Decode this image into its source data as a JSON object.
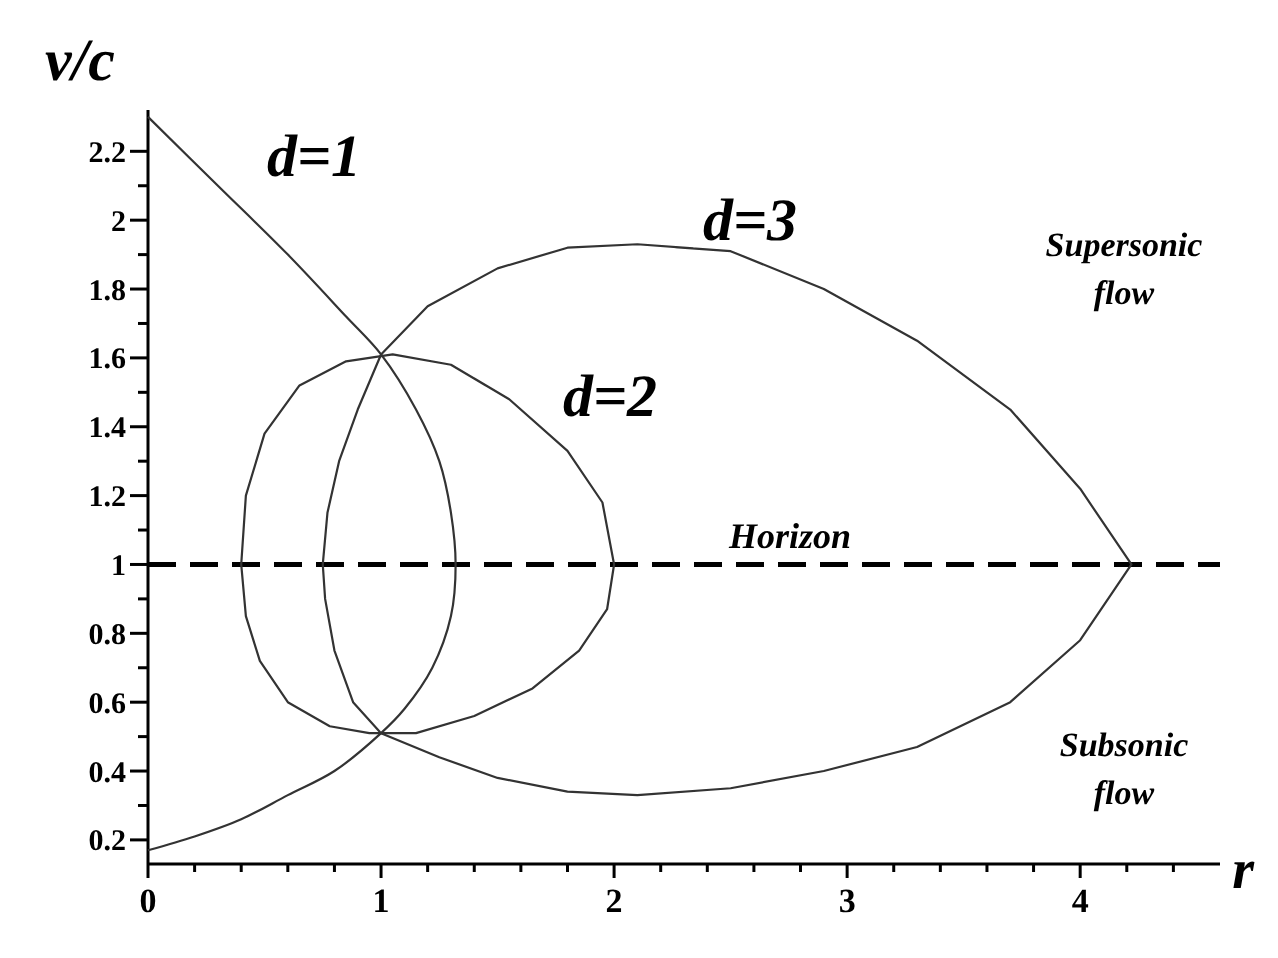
{
  "chart_data": {
    "type": "line",
    "xlabel": "r",
    "ylabel": "v/c",
    "xlim": [
      0,
      4.6
    ],
    "ylim": [
      0.13,
      2.32
    ],
    "xticks": [
      0,
      {
        "value": 0.2,
        "label": null
      },
      {
        "value": 0.4,
        "label": null
      },
      {
        "value": 0.6,
        "label": null
      },
      {
        "value": 0.8,
        "label": null
      },
      1,
      {
        "value": 1.2,
        "label": null
      },
      {
        "value": 1.4,
        "label": null
      },
      {
        "value": 1.6,
        "label": null
      },
      {
        "value": 1.8,
        "label": null
      },
      2,
      {
        "value": 2.2,
        "label": null
      },
      {
        "value": 2.4,
        "label": null
      },
      {
        "value": 2.6,
        "label": null
      },
      {
        "value": 2.8,
        "label": null
      },
      3,
      {
        "value": 3.2,
        "label": null
      },
      {
        "value": 3.4,
        "label": null
      },
      {
        "value": 3.6,
        "label": null
      },
      {
        "value": 3.8,
        "label": null
      },
      4,
      {
        "value": 4.2,
        "label": null
      },
      {
        "value": 4.4,
        "label": null
      }
    ],
    "yticks": [
      0.2,
      {
        "value": 0.3,
        "label": null
      },
      0.4,
      {
        "value": 0.5,
        "label": null
      },
      0.6,
      {
        "value": 0.7,
        "label": null
      },
      0.8,
      {
        "value": 0.9,
        "label": null
      },
      1,
      {
        "value": 1.1,
        "label": null
      },
      1.2,
      {
        "value": 1.3,
        "label": null
      },
      1.4,
      {
        "value": 1.5,
        "label": null
      },
      1.6,
      {
        "value": 1.7,
        "label": null
      },
      1.8,
      {
        "value": 1.9,
        "label": null
      },
      2,
      {
        "value": 2.1,
        "label": null
      },
      2.2
    ],
    "grid": false,
    "marker": "none",
    "ref_lines": [
      {
        "axis": "y",
        "value": 1,
        "label": "Horizon",
        "line_style": "dashed",
        "color": "#000000"
      }
    ],
    "annotations": [
      "Supersonic flow",
      "Subsonic flow"
    ],
    "series": [
      {
        "name": "d=1",
        "color": "#333333",
        "x": [
          0,
          0.3,
          0.6,
          0.85,
          1,
          1.15,
          1.25,
          1.3,
          1.32,
          1.3,
          1.22,
          1.1,
          1,
          0.8,
          0.6,
          0.4,
          0.2,
          0
        ],
        "values": [
          2.3,
          2.1,
          1.9,
          1.72,
          1.61,
          1.45,
          1.3,
          1.15,
          1,
          0.85,
          0.7,
          0.58,
          0.51,
          0.4,
          0.33,
          0.26,
          0.21,
          0.17
        ]
      },
      {
        "name": "d=2",
        "color": "#333333",
        "x": [
          1.3,
          1.55,
          1.8,
          1.95,
          2,
          1.97,
          1.85,
          1.65,
          1.4,
          1.15,
          0.95,
          0.78,
          0.6,
          0.48,
          0.42,
          0.4,
          0.42,
          0.5,
          0.65,
          0.85,
          1.05,
          1.3
        ],
        "values": [
          1.58,
          1.48,
          1.33,
          1.18,
          1,
          0.87,
          0.75,
          0.64,
          0.56,
          0.51,
          0.51,
          0.53,
          0.6,
          0.72,
          0.85,
          1,
          1.2,
          1.38,
          1.52,
          1.59,
          1.61,
          1.58
        ]
      },
      {
        "name": "d=3",
        "color": "#333333",
        "x": [
          2.1,
          2.5,
          2.9,
          3.3,
          3.7,
          4,
          4.22,
          4,
          3.7,
          3.3,
          2.9,
          2.5,
          2.1,
          1.8,
          1.5,
          1.25,
          1,
          0.88,
          0.8,
          0.76,
          0.75,
          0.77,
          0.82,
          0.9,
          1,
          1.2,
          1.5,
          1.8,
          2.1
        ],
        "values": [
          1.93,
          1.91,
          1.8,
          1.65,
          1.45,
          1.22,
          1,
          0.78,
          0.6,
          0.47,
          0.4,
          0.35,
          0.33,
          0.34,
          0.38,
          0.44,
          0.51,
          0.6,
          0.75,
          0.9,
          1,
          1.15,
          1.3,
          1.45,
          1.61,
          1.75,
          1.86,
          1.92,
          1.93
        ]
      }
    ]
  }
}
